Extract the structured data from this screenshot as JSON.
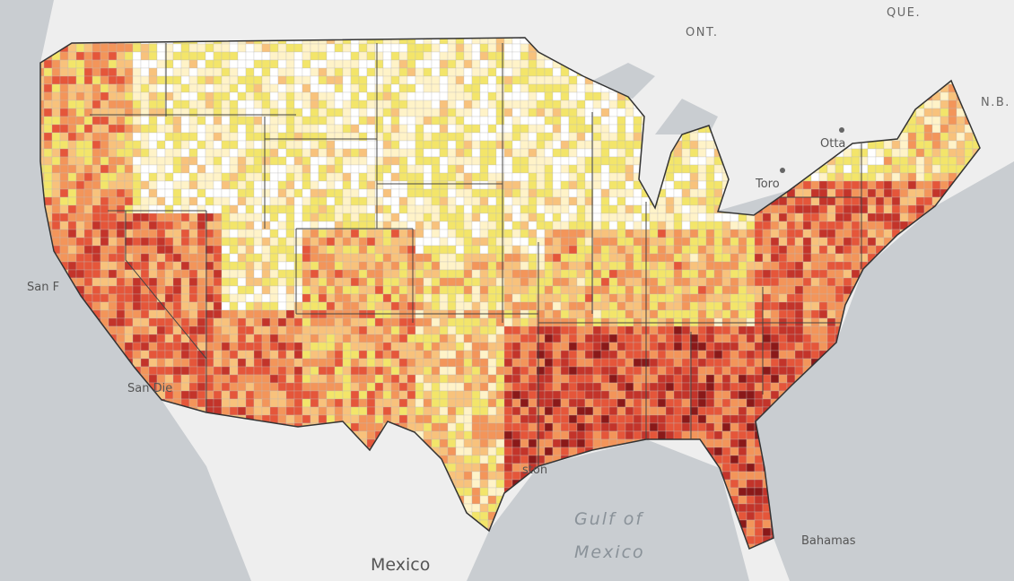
{
  "labels": {
    "que": "QUE.",
    "ont": "ONT.",
    "nb": "N.B.",
    "ottawa": "Otta",
    "toronto": "Toro",
    "san_francisco": "San F",
    "san_diego": "San Die",
    "houston": "ston",
    "gulf_line1": "Gulf of",
    "gulf_line2": "Mexico",
    "mexico": "Mexico",
    "bahamas": "Bahamas"
  }
}
